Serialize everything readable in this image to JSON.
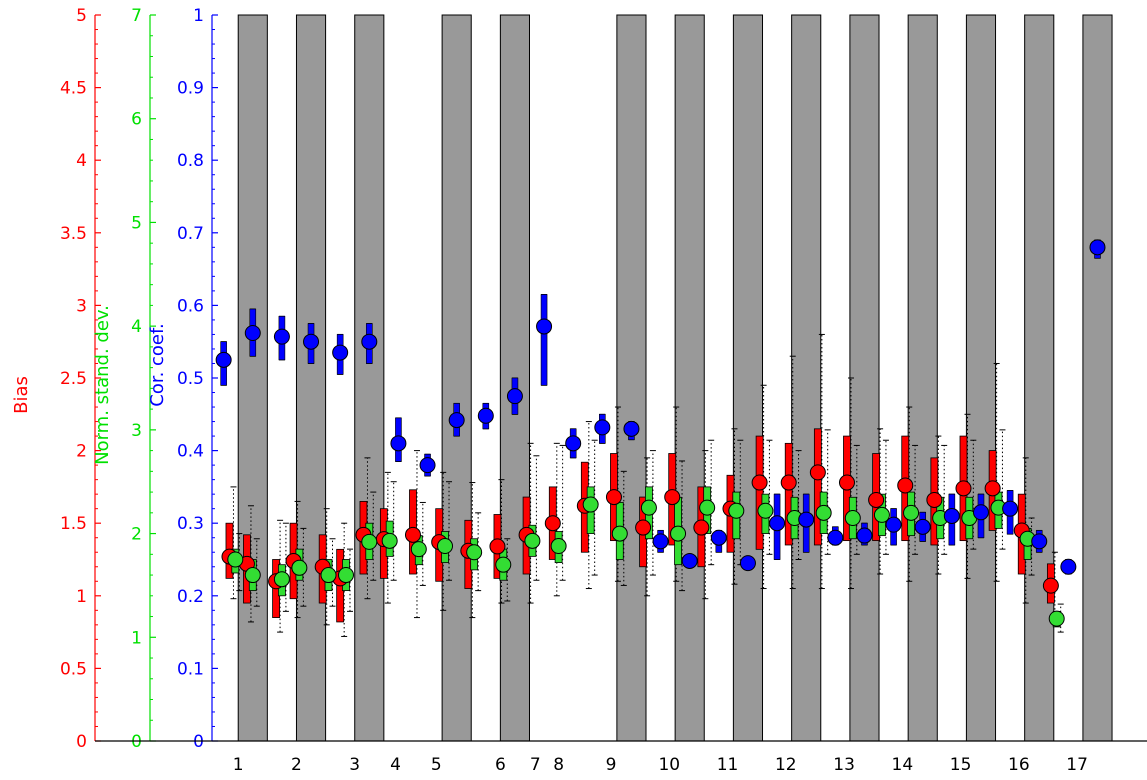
{
  "chart_data": {
    "type": "scatter",
    "axes": [
      {
        "name": "bias",
        "label": "Bias",
        "color": "#ff0000",
        "ylim": [
          0,
          5
        ],
        "ticks": [
          "0",
          "0.5",
          "1",
          "1.5",
          "2",
          "2.5",
          "3",
          "3.5",
          "4",
          "4.5",
          "5"
        ]
      },
      {
        "name": "std",
        "label": "Norm. stand. dev.",
        "color": "#00e000",
        "ylim": [
          0,
          7
        ],
        "ticks": [
          "0",
          "1",
          "2",
          "3",
          "4",
          "5",
          "6",
          "7"
        ]
      },
      {
        "name": "cor",
        "label": "Cor. coef.",
        "color": "#0000ff",
        "ylim": [
          0,
          1
        ],
        "ticks": [
          "0",
          "0.1",
          "0.2",
          "0.3",
          "0.4",
          "0.5",
          "0.6",
          "0.7",
          "0.8",
          "0.9",
          "1"
        ]
      }
    ],
    "x_ticks": [
      {
        "label": "1",
        "x": 1
      },
      {
        "label": "2",
        "x": 2
      },
      {
        "label": "3",
        "x": 3
      },
      {
        "label": "4",
        "x": 3.7
      },
      {
        "label": "5",
        "x": 4.4
      },
      {
        "label": "6",
        "x": 5.5
      },
      {
        "label": "7",
        "x": 6.1
      },
      {
        "label": "8",
        "x": 6.5
      },
      {
        "label": "9",
        "x": 7.4
      },
      {
        "label": "10",
        "x": 8.4
      },
      {
        "label": "11",
        "x": 9.4
      },
      {
        "label": "12",
        "x": 10.4
      },
      {
        "label": "13",
        "x": 11.4
      },
      {
        "label": "14",
        "x": 12.4
      },
      {
        "label": "15",
        "x": 13.4
      },
      {
        "label": "16",
        "x": 14.4
      },
      {
        "label": "17",
        "x": 15.4
      }
    ],
    "xlim": [
      0.55,
      16.6
    ],
    "shaded_bands": [
      [
        1,
        1.5
      ],
      [
        2,
        2.5
      ],
      [
        3,
        3.5
      ],
      [
        4.5,
        5
      ],
      [
        5.5,
        6
      ],
      [
        7.5,
        8
      ],
      [
        8.5,
        9
      ],
      [
        9.5,
        10
      ],
      [
        10.5,
        11
      ],
      [
        11.5,
        12
      ],
      [
        12.5,
        13
      ],
      [
        13.5,
        14
      ],
      [
        14.5,
        15
      ],
      [
        15.5,
        16
      ]
    ],
    "series": [
      {
        "name": "Bias",
        "axis": "bias",
        "color": "#ff0000",
        "points": [
          {
            "x": 0.85,
            "y": 1.27,
            "q1": 1.12,
            "q3": 1.5,
            "lo": 0.98,
            "hi": 1.75
          },
          {
            "x": 1.15,
            "y": 1.22,
            "q1": 0.95,
            "q3": 1.42,
            "lo": 0.82,
            "hi": 1.62
          },
          {
            "x": 1.65,
            "y": 1.1,
            "q1": 0.85,
            "q3": 1.25,
            "lo": 0.75,
            "hi": 1.52
          },
          {
            "x": 1.95,
            "y": 1.24,
            "q1": 0.98,
            "q3": 1.5,
            "lo": 0.85,
            "hi": 1.65
          },
          {
            "x": 2.45,
            "y": 1.2,
            "q1": 0.95,
            "q3": 1.42,
            "lo": 0.8,
            "hi": 1.6
          },
          {
            "x": 2.75,
            "y": 1.12,
            "q1": 0.82,
            "q3": 1.32,
            "lo": 0.72,
            "hi": 1.5
          },
          {
            "x": 3.15,
            "y": 1.42,
            "q1": 1.15,
            "q3": 1.65,
            "lo": 0.98,
            "hi": 1.95
          },
          {
            "x": 3.5,
            "y": 1.39,
            "q1": 1.12,
            "q3": 1.6,
            "lo": 0.95,
            "hi": 1.85
          },
          {
            "x": 4.0,
            "y": 1.42,
            "q1": 1.15,
            "q3": 1.73,
            "lo": 0.85,
            "hi": 2.0
          },
          {
            "x": 4.45,
            "y": 1.37,
            "q1": 1.1,
            "q3": 1.6,
            "lo": 0.9,
            "hi": 1.85
          },
          {
            "x": 4.95,
            "y": 1.31,
            "q1": 1.05,
            "q3": 1.52,
            "lo": 0.85,
            "hi": 1.78
          },
          {
            "x": 5.45,
            "y": 1.34,
            "q1": 1.12,
            "q3": 1.56,
            "lo": 0.95,
            "hi": 1.8
          },
          {
            "x": 5.95,
            "y": 1.42,
            "q1": 1.15,
            "q3": 1.68,
            "lo": 0.95,
            "hi": 2.05
          },
          {
            "x": 6.4,
            "y": 1.5,
            "q1": 1.25,
            "q3": 1.75,
            "lo": 1.0,
            "hi": 2.05
          },
          {
            "x": 6.95,
            "y": 1.62,
            "q1": 1.3,
            "q3": 1.92,
            "lo": 1.05,
            "hi": 2.2
          },
          {
            "x": 7.45,
            "y": 1.68,
            "q1": 1.38,
            "q3": 1.98,
            "lo": 1.1,
            "hi": 2.3
          },
          {
            "x": 7.95,
            "y": 1.47,
            "q1": 1.2,
            "q3": 1.68,
            "lo": 1.0,
            "hi": 1.95
          },
          {
            "x": 8.45,
            "y": 1.68,
            "q1": 1.35,
            "q3": 1.98,
            "lo": 1.1,
            "hi": 2.3
          },
          {
            "x": 8.95,
            "y": 1.47,
            "q1": 1.2,
            "q3": 1.75,
            "lo": 0.98,
            "hi": 2.0
          },
          {
            "x": 9.45,
            "y": 1.6,
            "q1": 1.3,
            "q3": 1.83,
            "lo": 1.08,
            "hi": 2.15
          },
          {
            "x": 9.95,
            "y": 1.78,
            "q1": 1.32,
            "q3": 2.1,
            "lo": 1.05,
            "hi": 2.45
          },
          {
            "x": 10.45,
            "y": 1.78,
            "q1": 1.35,
            "q3": 2.05,
            "lo": 1.05,
            "hi": 2.65
          },
          {
            "x": 10.95,
            "y": 1.85,
            "q1": 1.35,
            "q3": 2.15,
            "lo": 1.05,
            "hi": 2.8
          },
          {
            "x": 11.45,
            "y": 1.78,
            "q1": 1.38,
            "q3": 2.1,
            "lo": 1.05,
            "hi": 2.5
          },
          {
            "x": 11.95,
            "y": 1.66,
            "q1": 1.38,
            "q3": 1.98,
            "lo": 1.15,
            "hi": 2.15
          },
          {
            "x": 12.45,
            "y": 1.76,
            "q1": 1.38,
            "q3": 2.1,
            "lo": 1.1,
            "hi": 2.3
          },
          {
            "x": 12.95,
            "y": 1.66,
            "q1": 1.35,
            "q3": 1.95,
            "lo": 1.15,
            "hi": 2.1
          },
          {
            "x": 13.45,
            "y": 1.74,
            "q1": 1.38,
            "q3": 2.1,
            "lo": 1.12,
            "hi": 2.25
          },
          {
            "x": 13.95,
            "y": 1.74,
            "q1": 1.45,
            "q3": 2.0,
            "lo": 1.1,
            "hi": 2.6
          },
          {
            "x": 14.45,
            "y": 1.45,
            "q1": 1.15,
            "q3": 1.7,
            "lo": 0.95,
            "hi": 1.95
          },
          {
            "x": 14.95,
            "y": 1.07,
            "q1": 0.95,
            "q3": 1.22,
            "lo": 0.85,
            "hi": 1.3
          }
        ]
      },
      {
        "name": "Norm. stand. dev.",
        "axis": "std",
        "color": "#33dd33",
        "points": [
          {
            "x": 0.95,
            "y": 1.75,
            "q1": 1.62,
            "q3": 1.85,
            "lo": 1.45,
            "hi": 2.0
          },
          {
            "x": 1.25,
            "y": 1.6,
            "q1": 1.45,
            "q3": 1.75,
            "lo": 1.3,
            "hi": 1.95
          },
          {
            "x": 1.75,
            "y": 1.56,
            "q1": 1.4,
            "q3": 1.7,
            "lo": 1.25,
            "hi": 2.1
          },
          {
            "x": 2.05,
            "y": 1.67,
            "q1": 1.55,
            "q3": 1.85,
            "lo": 1.3,
            "hi": 2.05
          },
          {
            "x": 2.55,
            "y": 1.6,
            "q1": 1.45,
            "q3": 1.75,
            "lo": 1.3,
            "hi": 1.95
          },
          {
            "x": 2.85,
            "y": 1.6,
            "q1": 1.45,
            "q3": 1.75,
            "lo": 1.25,
            "hi": 1.85
          },
          {
            "x": 3.25,
            "y": 1.92,
            "q1": 1.75,
            "q3": 2.1,
            "lo": 1.55,
            "hi": 2.4
          },
          {
            "x": 3.6,
            "y": 1.93,
            "q1": 1.78,
            "q3": 2.12,
            "lo": 1.55,
            "hi": 2.5
          },
          {
            "x": 4.1,
            "y": 1.85,
            "q1": 1.7,
            "q3": 1.98,
            "lo": 1.5,
            "hi": 2.3
          },
          {
            "x": 4.55,
            "y": 1.88,
            "q1": 1.72,
            "q3": 2.02,
            "lo": 1.55,
            "hi": 2.5
          },
          {
            "x": 5.05,
            "y": 1.82,
            "q1": 1.65,
            "q3": 1.95,
            "lo": 1.45,
            "hi": 2.2
          },
          {
            "x": 5.55,
            "y": 1.7,
            "q1": 1.55,
            "q3": 1.85,
            "lo": 1.35,
            "hi": 1.95
          },
          {
            "x": 6.05,
            "y": 1.93,
            "q1": 1.78,
            "q3": 2.08,
            "lo": 1.55,
            "hi": 2.75
          },
          {
            "x": 6.5,
            "y": 1.88,
            "q1": 1.72,
            "q3": 2.02,
            "lo": 1.55,
            "hi": 2.85
          },
          {
            "x": 7.05,
            "y": 2.28,
            "q1": 2.0,
            "q3": 2.45,
            "lo": 1.6,
            "hi": 2.9
          },
          {
            "x": 7.55,
            "y": 2.0,
            "q1": 1.75,
            "q3": 2.3,
            "lo": 1.5,
            "hi": 2.6
          },
          {
            "x": 8.05,
            "y": 2.25,
            "q1": 1.95,
            "q3": 2.45,
            "lo": 1.6,
            "hi": 2.8
          },
          {
            "x": 8.55,
            "y": 2.0,
            "q1": 1.7,
            "q3": 2.35,
            "lo": 1.45,
            "hi": 2.7
          },
          {
            "x": 9.05,
            "y": 2.25,
            "q1": 2.0,
            "q3": 2.45,
            "lo": 1.7,
            "hi": 2.9
          },
          {
            "x": 9.55,
            "y": 2.22,
            "q1": 1.95,
            "q3": 2.4,
            "lo": 1.7,
            "hi": 2.9
          },
          {
            "x": 10.05,
            "y": 2.22,
            "q1": 2.0,
            "q3": 2.38,
            "lo": 1.8,
            "hi": 2.9
          },
          {
            "x": 10.55,
            "y": 2.15,
            "q1": 1.95,
            "q3": 2.35,
            "lo": 1.75,
            "hi": 2.8
          },
          {
            "x": 11.05,
            "y": 2.2,
            "q1": 2.0,
            "q3": 2.4,
            "lo": 1.8,
            "hi": 3.0
          },
          {
            "x": 11.55,
            "y": 2.15,
            "q1": 1.95,
            "q3": 2.35,
            "lo": 1.8,
            "hi": 2.85
          },
          {
            "x": 12.05,
            "y": 2.18,
            "q1": 1.98,
            "q3": 2.38,
            "lo": 1.8,
            "hi": 2.9
          },
          {
            "x": 12.55,
            "y": 2.2,
            "q1": 1.98,
            "q3": 2.4,
            "lo": 1.8,
            "hi": 2.85
          },
          {
            "x": 13.05,
            "y": 2.15,
            "q1": 1.95,
            "q3": 2.35,
            "lo": 1.8,
            "hi": 2.85
          },
          {
            "x": 13.55,
            "y": 2.15,
            "q1": 1.95,
            "q3": 2.35,
            "lo": 1.85,
            "hi": 2.9
          },
          {
            "x": 14.05,
            "y": 2.25,
            "q1": 2.05,
            "q3": 2.4,
            "lo": 1.85,
            "hi": 3.0
          },
          {
            "x": 14.55,
            "y": 1.95,
            "q1": 1.75,
            "q3": 2.05,
            "lo": 1.6,
            "hi": 2.15
          },
          {
            "x": 15.05,
            "y": 1.18,
            "q1": 1.1,
            "q3": 1.25,
            "lo": 1.05,
            "hi": 1.32
          }
        ]
      },
      {
        "name": "Cor. coef.",
        "axis": "cor",
        "color": "#0000ff",
        "points": [
          {
            "x": 0.75,
            "y": 0.525,
            "lo": 0.49,
            "hi": 0.55
          },
          {
            "x": 1.25,
            "y": 0.562,
            "lo": 0.53,
            "hi": 0.595
          },
          {
            "x": 1.75,
            "y": 0.557,
            "lo": 0.525,
            "hi": 0.585
          },
          {
            "x": 2.25,
            "y": 0.55,
            "lo": 0.52,
            "hi": 0.575
          },
          {
            "x": 2.75,
            "y": 0.535,
            "lo": 0.505,
            "hi": 0.56
          },
          {
            "x": 3.25,
            "y": 0.55,
            "lo": 0.52,
            "hi": 0.575
          },
          {
            "x": 3.75,
            "y": 0.41,
            "lo": 0.385,
            "hi": 0.445
          },
          {
            "x": 4.25,
            "y": 0.38,
            "lo": 0.365,
            "hi": 0.395
          },
          {
            "x": 4.75,
            "y": 0.442,
            "lo": 0.42,
            "hi": 0.465
          },
          {
            "x": 5.25,
            "y": 0.448,
            "lo": 0.43,
            "hi": 0.465
          },
          {
            "x": 5.75,
            "y": 0.475,
            "lo": 0.45,
            "hi": 0.5
          },
          {
            "x": 6.25,
            "y": 0.571,
            "lo": 0.49,
            "hi": 0.615
          },
          {
            "x": 6.75,
            "y": 0.41,
            "lo": 0.39,
            "hi": 0.43
          },
          {
            "x": 7.25,
            "y": 0.432,
            "lo": 0.41,
            "hi": 0.45
          },
          {
            "x": 7.75,
            "y": 0.43,
            "lo": 0.415,
            "hi": 0.44
          },
          {
            "x": 8.25,
            "y": 0.275,
            "lo": 0.26,
            "hi": 0.29
          },
          {
            "x": 8.75,
            "y": 0.248,
            "lo": 0.24,
            "hi": 0.255
          },
          {
            "x": 9.25,
            "y": 0.28,
            "lo": 0.26,
            "hi": 0.29
          },
          {
            "x": 9.75,
            "y": 0.245,
            "lo": 0.238,
            "hi": 0.252
          },
          {
            "x": 10.25,
            "y": 0.3,
            "lo": 0.25,
            "hi": 0.34
          },
          {
            "x": 10.75,
            "y": 0.305,
            "lo": 0.26,
            "hi": 0.34
          },
          {
            "x": 11.25,
            "y": 0.28,
            "lo": 0.27,
            "hi": 0.295
          },
          {
            "x": 11.75,
            "y": 0.283,
            "lo": 0.27,
            "hi": 0.3
          },
          {
            "x": 12.25,
            "y": 0.298,
            "lo": 0.27,
            "hi": 0.32
          },
          {
            "x": 12.75,
            "y": 0.295,
            "lo": 0.275,
            "hi": 0.315
          },
          {
            "x": 13.25,
            "y": 0.31,
            "lo": 0.27,
            "hi": 0.34
          },
          {
            "x": 13.75,
            "y": 0.315,
            "lo": 0.28,
            "hi": 0.34
          },
          {
            "x": 14.25,
            "y": 0.32,
            "lo": 0.285,
            "hi": 0.345
          },
          {
            "x": 14.75,
            "y": 0.275,
            "lo": 0.26,
            "hi": 0.29
          },
          {
            "x": 15.25,
            "y": 0.24,
            "lo": 0.23,
            "hi": 0.25
          },
          {
            "x": 15.75,
            "y": 0.68,
            "lo": 0.665,
            "hi": 0.69
          }
        ]
      }
    ]
  }
}
